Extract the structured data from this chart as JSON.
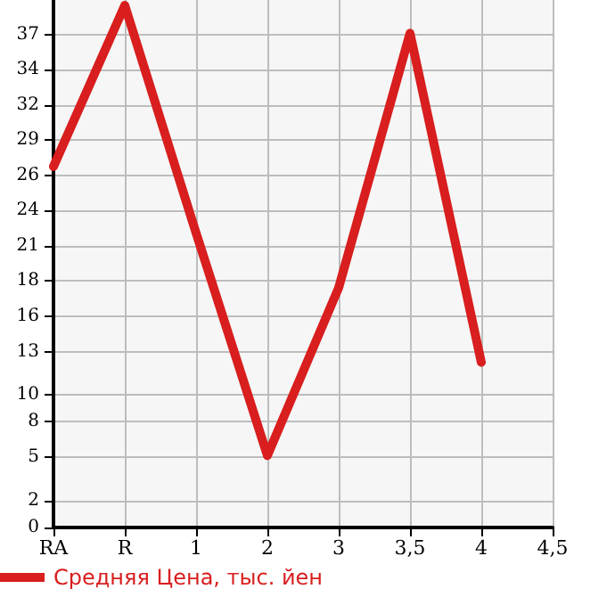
{
  "chart_data": {
    "type": "line",
    "categories": [
      "RA",
      "R",
      "1",
      "2",
      "3",
      "3,5",
      "4",
      "4,5"
    ],
    "series": [
      {
        "name": "Средняя Цена, тыс. йен",
        "color": "#d81e1e",
        "values": [
          27.1,
          39.2,
          22.1,
          5.4,
          18.0,
          37.1,
          12.4,
          null
        ]
      }
    ],
    "ylim": [
      0,
      39.6
    ],
    "yticks": [
      {
        "value": 0,
        "label": "0"
      },
      {
        "value": 2,
        "label": "2"
      },
      {
        "value": 5.29,
        "label": "5"
      },
      {
        "value": 7.93,
        "label": "8"
      },
      {
        "value": 10,
        "label": "10"
      },
      {
        "value": 13.21,
        "label": "13"
      },
      {
        "value": 15.86,
        "label": "16"
      },
      {
        "value": 18.5,
        "label": "18"
      },
      {
        "value": 21.14,
        "label": "21"
      },
      {
        "value": 23.79,
        "label": "24"
      },
      {
        "value": 26.43,
        "label": "26"
      },
      {
        "value": 29.07,
        "label": "29"
      },
      {
        "value": 31.71,
        "label": "32"
      },
      {
        "value": 34.36,
        "label": "34"
      },
      {
        "value": 37,
        "label": "37"
      }
    ],
    "grid": true,
    "legend": "bottom left",
    "marker": "none",
    "line_style": "solid"
  }
}
